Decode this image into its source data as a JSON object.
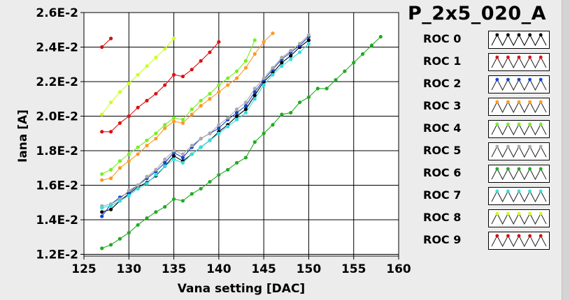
{
  "chart_data": {
    "type": "line",
    "title": "P_2x5_020_A",
    "xlabel": "Vana setting [DAC]",
    "ylabel": "Iana [A]",
    "xlim": [
      125,
      160
    ],
    "ylim": [
      0.0119,
      0.026
    ],
    "x_ticks": [
      125,
      130,
      135,
      140,
      145,
      150,
      155,
      160
    ],
    "x_tick_labels": [
      "125",
      "130",
      "135",
      "140",
      "145",
      "150",
      "155",
      "160"
    ],
    "y_ticks": [
      0.012,
      0.014,
      0.016,
      0.018,
      0.02,
      0.022,
      0.024,
      0.026
    ],
    "y_tick_labels": [
      "1.2E-2",
      "1.4E-2",
      "1.6E-2",
      "1.8E-2",
      "2.0E-2",
      "2.2E-2",
      "2.4E-2",
      "2.6E-2"
    ],
    "grid": true,
    "legend_position": "right",
    "series": [
      {
        "name": "ROC 0",
        "color": "#000000",
        "x": [
          127,
          128,
          129,
          130,
          131,
          132,
          133,
          134,
          135,
          136,
          137,
          138,
          139,
          140,
          141,
          142,
          143,
          144,
          145,
          146,
          147,
          148,
          149,
          150
        ],
        "y": [
          0.01445,
          0.0146,
          0.0151,
          0.0155,
          0.0159,
          0.01615,
          0.01655,
          0.0171,
          0.0177,
          0.0174,
          0.0178,
          0.0182,
          0.0186,
          0.0191,
          0.0195,
          0.02,
          0.0204,
          0.0212,
          0.022,
          0.0225,
          0.0231,
          0.0235,
          0.024,
          0.0244
        ]
      },
      {
        "name": "ROC 1",
        "color": "#dd1111",
        "x": [
          127,
          128,
          129,
          130,
          131,
          132,
          133,
          134,
          135,
          136,
          137,
          138,
          139,
          140
        ],
        "y": [
          0.0191,
          0.0191,
          0.0196,
          0.02,
          0.0205,
          0.0209,
          0.0213,
          0.0218,
          0.0224,
          0.0223,
          0.0227,
          0.0232,
          0.0237,
          0.0243
        ]
      },
      {
        "name": "ROC 2",
        "color": "#1144cc",
        "x": [
          127,
          128,
          129,
          130,
          131,
          132,
          133,
          134,
          135,
          136,
          137,
          138,
          139,
          140,
          141,
          142,
          143,
          144,
          145,
          146,
          147,
          148,
          149,
          150
        ],
        "y": [
          0.0142,
          0.0149,
          0.0153,
          0.0156,
          0.016,
          0.0164,
          0.0168,
          0.0173,
          0.0179,
          0.0176,
          0.0182,
          0.0187,
          0.019,
          0.0193,
          0.0198,
          0.0202,
          0.0206,
          0.0214,
          0.0221,
          0.0227,
          0.0233,
          0.0237,
          0.0241,
          0.0246
        ]
      },
      {
        "name": "ROC 3",
        "color": "#ff9922",
        "x": [
          127,
          128,
          129,
          130,
          131,
          132,
          133,
          134,
          135,
          136,
          137,
          138,
          139,
          140,
          141,
          142,
          143,
          144,
          145,
          146
        ],
        "y": [
          0.0163,
          0.0164,
          0.017,
          0.0174,
          0.0178,
          0.0183,
          0.0187,
          0.0193,
          0.0197,
          0.0196,
          0.0201,
          0.0206,
          0.021,
          0.0214,
          0.0218,
          0.0222,
          0.0228,
          0.0236,
          0.0243,
          0.0248
        ]
      },
      {
        "name": "ROC 4",
        "color": "#77ee22",
        "x": [
          127,
          128,
          129,
          130,
          131,
          132,
          133,
          134,
          135,
          136,
          137,
          138,
          139,
          140,
          141,
          142,
          143,
          144
        ],
        "y": [
          0.01665,
          0.0169,
          0.0174,
          0.0178,
          0.0182,
          0.0186,
          0.019,
          0.0195,
          0.0199,
          0.0198,
          0.0204,
          0.0209,
          0.0213,
          0.0218,
          0.0222,
          0.0226,
          0.0232,
          0.0244
        ]
      },
      {
        "name": "ROC 5",
        "color": "#aaaaaa",
        "x": [
          127,
          128,
          129,
          130,
          131,
          132,
          133,
          134,
          135,
          136,
          137,
          138,
          139,
          140,
          141,
          142,
          143,
          144,
          145,
          146,
          147,
          148,
          149,
          150
        ],
        "y": [
          0.0148,
          0.0149,
          0.0152,
          0.0157,
          0.016,
          0.0165,
          0.0169,
          0.0175,
          0.018,
          0.0178,
          0.0183,
          0.0187,
          0.019,
          0.0195,
          0.0199,
          0.0204,
          0.0208,
          0.0216,
          0.0222,
          0.0228,
          0.0234,
          0.0238,
          0.0242,
          0.0247
        ]
      },
      {
        "name": "ROC 6",
        "color": "#22aa22",
        "x": [
          127,
          128,
          129,
          130,
          131,
          132,
          133,
          134,
          135,
          136,
          137,
          138,
          139,
          140,
          141,
          142,
          143,
          144,
          145,
          146,
          147,
          148,
          149,
          150,
          151,
          152,
          153,
          154,
          155,
          156,
          157,
          158
        ],
        "y": [
          0.01235,
          0.01255,
          0.0129,
          0.01325,
          0.0137,
          0.0141,
          0.01445,
          0.01475,
          0.0152,
          0.0151,
          0.0155,
          0.0158,
          0.0162,
          0.0166,
          0.0169,
          0.0173,
          0.0176,
          0.0185,
          0.019,
          0.0195,
          0.0201,
          0.0202,
          0.0208,
          0.0211,
          0.0216,
          0.0216,
          0.0221,
          0.0226,
          0.0231,
          0.0236,
          0.0241,
          0.0246
        ]
      },
      {
        "name": "ROC 7",
        "color": "#33dddd",
        "x": [
          127,
          128,
          129,
          130,
          131,
          132,
          133,
          134,
          135,
          136,
          137,
          138,
          139,
          140,
          141,
          142,
          143,
          144,
          145,
          146,
          147,
          148,
          149,
          150
        ],
        "y": [
          0.0147,
          0.0148,
          0.0151,
          0.0154,
          0.0158,
          0.0161,
          0.0166,
          0.0171,
          0.0175,
          0.0173,
          0.0178,
          0.0182,
          0.0186,
          0.019,
          0.0194,
          0.0198,
          0.0202,
          0.021,
          0.0218,
          0.0224,
          0.0229,
          0.0233,
          0.0237,
          0.0242
        ]
      },
      {
        "name": "ROC 8",
        "color": "#ccff22",
        "x": [
          127,
          128,
          129,
          130,
          131,
          132,
          133,
          134,
          135
        ],
        "y": [
          0.0201,
          0.0208,
          0.0214,
          0.0219,
          0.0224,
          0.0229,
          0.0234,
          0.0239,
          0.0245
        ]
      },
      {
        "name": "ROC 9",
        "color": "#cc1111",
        "x": [
          127,
          128
        ],
        "y": [
          0.024,
          0.0245
        ]
      }
    ]
  }
}
